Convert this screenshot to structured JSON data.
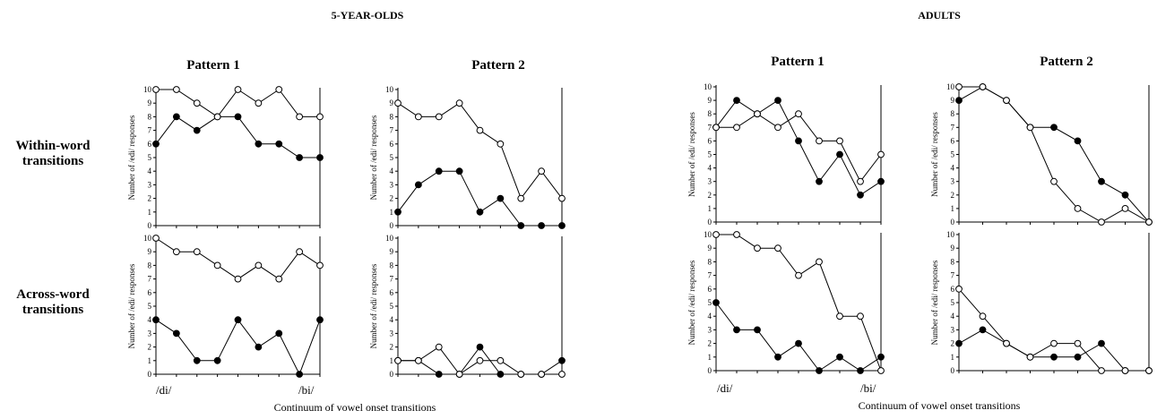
{
  "groups": [
    {
      "title": "5-YEAR-OLDS",
      "xlabel": "Continuum of vowel onset transitions"
    },
    {
      "title": "ADULTS",
      "xlabel": "Continuum of vowel onset transitions"
    }
  ],
  "pattern_labels": [
    "Pattern 1",
    "Pattern 2"
  ],
  "row_labels": [
    [
      "Within-word",
      "transitions"
    ],
    [
      "Across-word",
      "transitions"
    ]
  ],
  "ylabel": "Number of /edi/ responses",
  "x_end_labels": [
    "/di/",
    "/bi/"
  ],
  "chart_data": [
    {
      "type": "line",
      "group": "5-YEAR-OLDS",
      "pattern": "Pattern 1",
      "row": "Within-word transitions",
      "x": [
        1,
        2,
        3,
        4,
        5,
        6,
        7,
        8,
        9
      ],
      "ylim": [
        0,
        10
      ],
      "yticks": [
        0,
        1,
        2,
        3,
        4,
        5,
        6,
        7,
        8,
        9,
        10
      ],
      "series": [
        {
          "marker": "open",
          "values": [
            10,
            10,
            9,
            8,
            10,
            9,
            10,
            8,
            8
          ]
        },
        {
          "marker": "filled",
          "values": [
            6,
            8,
            7,
            8,
            8,
            6,
            6,
            5,
            5
          ]
        }
      ]
    },
    {
      "type": "line",
      "group": "5-YEAR-OLDS",
      "pattern": "Pattern 2",
      "row": "Within-word transitions",
      "x": [
        1,
        2,
        3,
        4,
        5,
        6,
        7,
        8,
        9
      ],
      "ylim": [
        0,
        10
      ],
      "yticks": [
        0,
        1,
        2,
        3,
        4,
        5,
        6,
        7,
        8,
        9,
        10
      ],
      "series": [
        {
          "marker": "open",
          "values": [
            9,
            8,
            8,
            9,
            7,
            6,
            2,
            4,
            2
          ]
        },
        {
          "marker": "filled",
          "values": [
            1,
            3,
            4,
            4,
            1,
            2,
            0,
            0,
            0
          ]
        }
      ]
    },
    {
      "type": "line",
      "group": "ADULTS",
      "pattern": "Pattern 1",
      "row": "Within-word transitions",
      "x": [
        1,
        2,
        3,
        4,
        5,
        6,
        7,
        8,
        9
      ],
      "ylim": [
        0,
        10
      ],
      "yticks": [
        0,
        1,
        2,
        3,
        4,
        5,
        6,
        7,
        8,
        9,
        10
      ],
      "series": [
        {
          "marker": "open",
          "values": [
            7,
            7,
            8,
            7,
            8,
            6,
            6,
            3,
            5
          ]
        },
        {
          "marker": "filled",
          "values": [
            7,
            9,
            8,
            9,
            6,
            3,
            5,
            2,
            3
          ]
        }
      ]
    },
    {
      "type": "line",
      "group": "ADULTS",
      "pattern": "Pattern 2",
      "row": "Within-word transitions",
      "x": [
        1,
        2,
        3,
        4,
        5,
        6,
        7,
        8,
        9
      ],
      "ylim": [
        0,
        10
      ],
      "yticks": [
        0,
        1,
        2,
        3,
        4,
        5,
        6,
        7,
        8,
        9,
        10
      ],
      "series": [
        {
          "marker": "open",
          "values": [
            10,
            10,
            9,
            7,
            3,
            1,
            0,
            1,
            0
          ]
        },
        {
          "marker": "filled",
          "values": [
            9,
            10,
            9,
            7,
            7,
            6,
            3,
            2,
            0
          ]
        }
      ]
    },
    {
      "type": "line",
      "group": "5-YEAR-OLDS",
      "pattern": "Pattern 1",
      "row": "Across-word transitions",
      "x": [
        1,
        2,
        3,
        4,
        5,
        6,
        7,
        8,
        9
      ],
      "ylim": [
        0,
        10
      ],
      "yticks": [
        0,
        1,
        2,
        3,
        4,
        5,
        6,
        7,
        8,
        9,
        10
      ],
      "series": [
        {
          "marker": "open",
          "values": [
            10,
            9,
            9,
            8,
            7,
            8,
            7,
            9,
            8
          ]
        },
        {
          "marker": "filled",
          "values": [
            4,
            3,
            1,
            1,
            4,
            2,
            3,
            0,
            4
          ]
        }
      ]
    },
    {
      "type": "line",
      "group": "5-YEAR-OLDS",
      "pattern": "Pattern 2",
      "row": "Across-word transitions",
      "x": [
        1,
        2,
        3,
        4,
        5,
        6,
        7,
        8,
        9
      ],
      "ylim": [
        0,
        10
      ],
      "yticks": [
        0,
        1,
        2,
        3,
        4,
        5,
        6,
        7,
        8,
        9,
        10
      ],
      "series": [
        {
          "marker": "open",
          "values": [
            1,
            1,
            2,
            0,
            1,
            1,
            0,
            0,
            0
          ]
        },
        {
          "marker": "filled",
          "values": [
            1,
            1,
            0,
            0,
            2,
            0,
            0,
            0,
            1
          ]
        }
      ]
    },
    {
      "type": "line",
      "group": "ADULTS",
      "pattern": "Pattern 1",
      "row": "Across-word transitions",
      "x": [
        1,
        2,
        3,
        4,
        5,
        6,
        7,
        8,
        9
      ],
      "ylim": [
        0,
        10
      ],
      "yticks": [
        0,
        1,
        2,
        3,
        4,
        5,
        6,
        7,
        8,
        9,
        10
      ],
      "series": [
        {
          "marker": "open",
          "values": [
            10,
            10,
            9,
            9,
            7,
            8,
            4,
            4,
            0
          ]
        },
        {
          "marker": "filled",
          "values": [
            5,
            3,
            3,
            1,
            2,
            0,
            1,
            0,
            1
          ]
        }
      ]
    },
    {
      "type": "line",
      "group": "ADULTS",
      "pattern": "Pattern 2",
      "row": "Across-word transitions",
      "x": [
        1,
        2,
        3,
        4,
        5,
        6,
        7,
        8,
        9
      ],
      "ylim": [
        0,
        10
      ],
      "yticks": [
        0,
        1,
        2,
        3,
        4,
        5,
        6,
        7,
        8,
        9,
        10
      ],
      "series": [
        {
          "marker": "open",
          "values": [
            6,
            4,
            2,
            1,
            2,
            2,
            0,
            0,
            0
          ]
        },
        {
          "marker": "filled",
          "values": [
            2,
            3,
            2,
            1,
            1,
            1,
            2,
            0,
            0
          ]
        }
      ]
    }
  ]
}
